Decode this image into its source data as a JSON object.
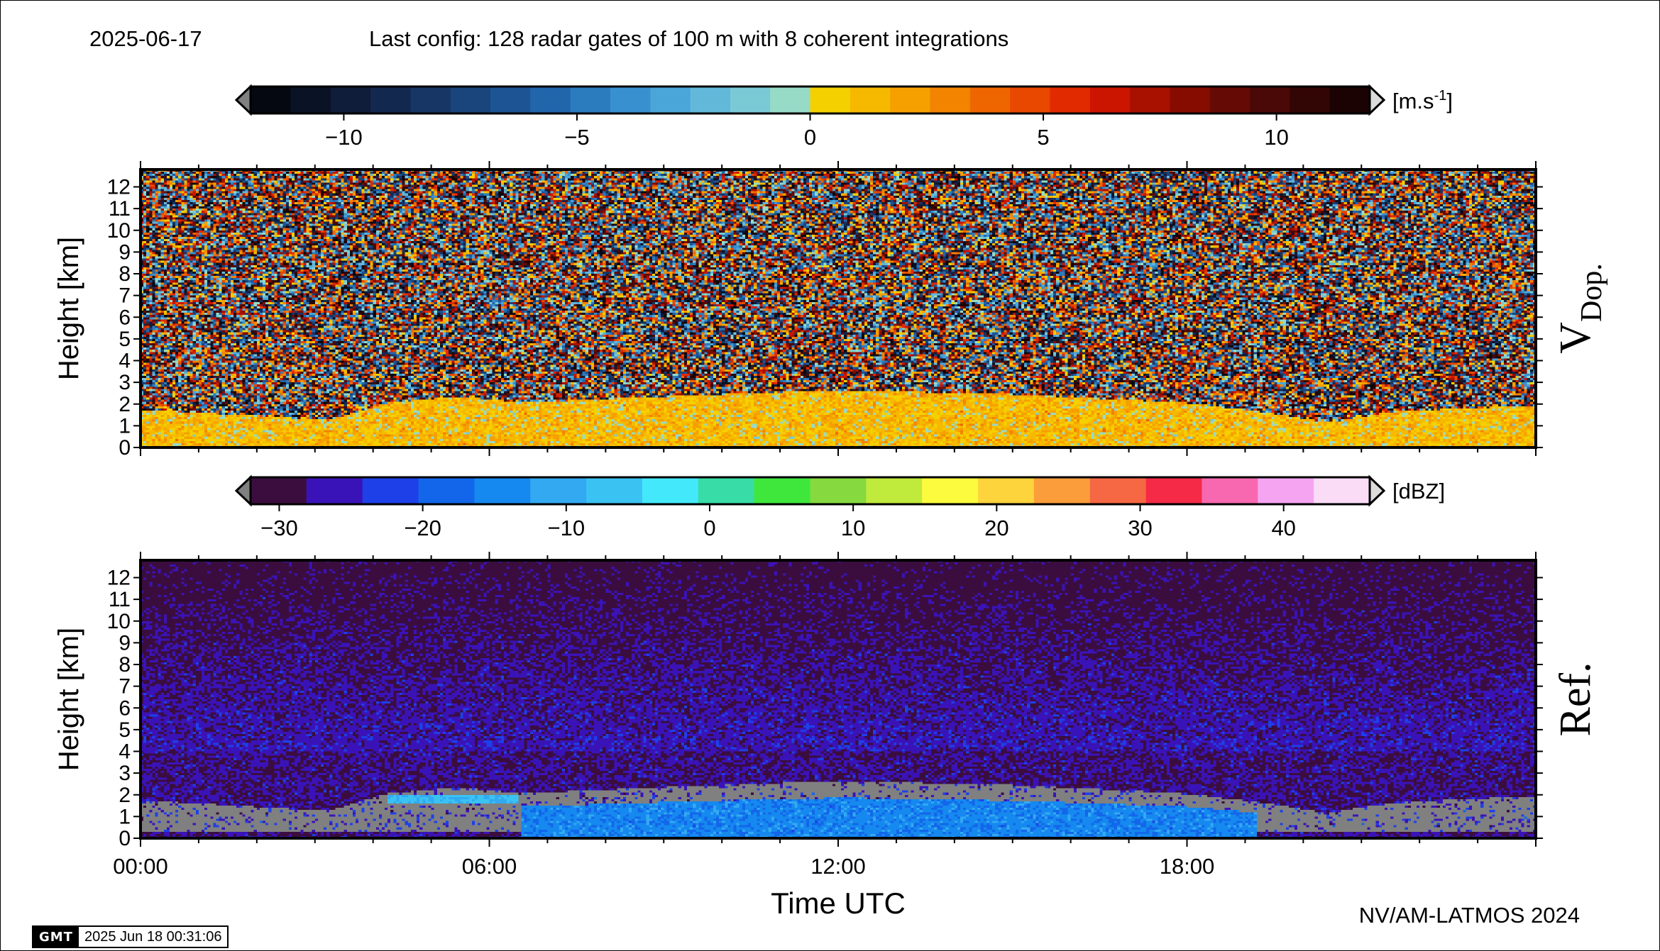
{
  "header": {
    "date": "2025-06-17",
    "config": "Last config: 128 radar gates of 100 m with 8 coherent integrations"
  },
  "footer": {
    "credit": "NV/AM-LATMOS 2024",
    "gmt_logo": "GMT",
    "gmt_timestamp": "2025 Jun 18 00:31:06"
  },
  "colors": {
    "no_data_gray": "#808080",
    "velocity_scale": [
      "#050810",
      "#0a1225",
      "#0f1c3a",
      "#13284f",
      "#173565",
      "#1a447c",
      "#1d5494",
      "#2166ab",
      "#2b7bbf",
      "#3890cf",
      "#4aa5d8",
      "#61b8d9",
      "#7acad6",
      "#97dbc7",
      "#f5d000",
      "#f6b900",
      "#f6a000",
      "#f38400",
      "#ee6600",
      "#e84800",
      "#e22a00",
      "#cc1500",
      "#a81000",
      "#860c00",
      "#650a04",
      "#4a0806",
      "#320605",
      "#1c0303"
    ],
    "reflectivity_scale": [
      "#3b0d3e",
      "#3a13b8",
      "#1e40e8",
      "#1366ea",
      "#1589ef",
      "#33a9f2",
      "#3ac3f2",
      "#43e9fb",
      "#37dca6",
      "#3fe73c",
      "#86d93f",
      "#c0ea3c",
      "#fdfb3d",
      "#fdd43b",
      "#fb9d3b",
      "#f66843",
      "#f42a46",
      "#f768b0",
      "#f5a4f2",
      "#fbdcf7"
    ]
  },
  "chart_data": [
    {
      "type": "heatmap",
      "title": "",
      "panel_label": "V",
      "panel_label_sub": "Dop.",
      "xlabel": "",
      "ylabel": "Height [km]",
      "x_range_hours": [
        0,
        24
      ],
      "ylim": [
        0,
        12.8
      ],
      "y_ticks": [
        "0",
        "1",
        "2",
        "3",
        "4",
        "5",
        "6",
        "7",
        "8",
        "9",
        "10",
        "11",
        "12"
      ],
      "colorbar": {
        "unit": "[m.s",
        "unit_sup": "-1",
        "unit_end": "]",
        "range": [
          -12,
          12
        ],
        "tick_values": [
          -10,
          -5,
          0,
          5,
          10
        ],
        "tick_labels": [
          "−10",
          "−5",
          "0",
          "5",
          "10"
        ],
        "extend": "both"
      },
      "features": {
        "boundary_layer_top_km": [
          [
            0,
            1.7
          ],
          [
            3.2,
            1.2
          ],
          [
            4.2,
            2.0
          ],
          [
            5.5,
            2.3
          ],
          [
            6.5,
            2.0
          ],
          [
            9,
            2.3
          ],
          [
            12,
            2.6
          ],
          [
            15,
            2.4
          ],
          [
            18,
            2.0
          ],
          [
            19.5,
            1.5
          ],
          [
            20.4,
            1.1
          ],
          [
            21.5,
            1.6
          ],
          [
            24,
            1.9
          ]
        ],
        "mean_velocity_in_layer_m_s": 1.2,
        "noise_above": "random"
      }
    },
    {
      "type": "heatmap",
      "title": "",
      "panel_label": "Ref.",
      "xlabel": "Time UTC",
      "ylabel": "Height [km]",
      "x_range_hours": [
        0,
        24
      ],
      "x_ticks": [
        "00:00",
        "06:00",
        "12:00",
        "18:00"
      ],
      "ylim": [
        0,
        12.8
      ],
      "y_ticks": [
        "0",
        "1",
        "2",
        "3",
        "4",
        "5",
        "6",
        "7",
        "8",
        "9",
        "10",
        "11",
        "12"
      ],
      "colorbar": {
        "unit": "[dBZ]",
        "range": [
          -32,
          46
        ],
        "tick_values": [
          -30,
          -20,
          -10,
          0,
          10,
          20,
          30,
          40
        ],
        "tick_labels": [
          "−30",
          "−20",
          "−10",
          "0",
          "10",
          "20",
          "30",
          "40"
        ],
        "extend": "both"
      },
      "features": {
        "elevated_layer_hours": [
          4.2,
          6.5
        ],
        "elevated_layer_km": [
          1.5,
          2.0
        ],
        "elevated_layer_dbz": -8,
        "cloud_layer_hours": [
          6.5,
          19.2
        ],
        "cloud_layer_dbz": -15,
        "background_dbz": -24
      }
    }
  ]
}
